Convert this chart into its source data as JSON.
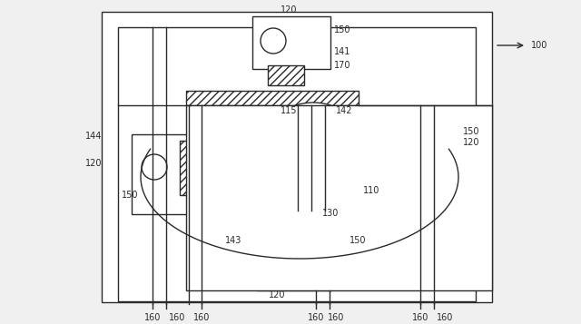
{
  "bg_color": "#f0f0f0",
  "line_color": "#2a2a2a",
  "white": "#ffffff",
  "figsize": [
    6.4,
    3.57
  ],
  "dpi": 100
}
